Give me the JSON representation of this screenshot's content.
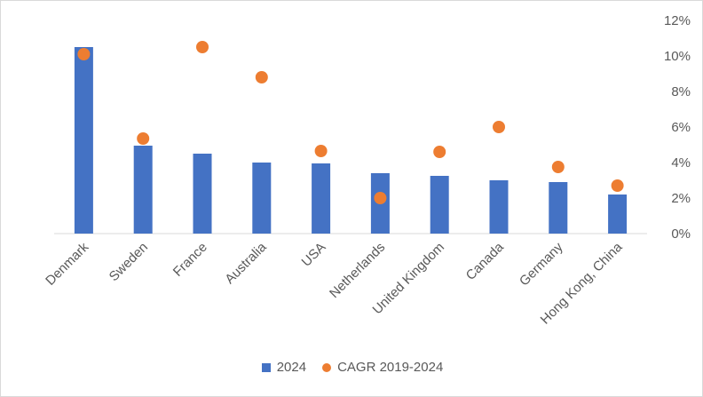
{
  "chart_data": {
    "type": "bar",
    "categories": [
      "Denmark",
      "Sweden",
      "France",
      "Australia",
      "USA",
      "Netherlands",
      "United Kingdom",
      "Canada",
      "Germany",
      "Hong Kong, China"
    ],
    "series": [
      {
        "name": "2024",
        "type": "bar",
        "axis": "left",
        "color": "#4472C4",
        "values": [
          10.5,
          4.95,
          4.5,
          4.0,
          3.95,
          3.4,
          3.25,
          3.0,
          2.9,
          2.2
        ]
      },
      {
        "name": "CAGR 2019-2024",
        "type": "scatter",
        "axis": "right",
        "color": "#ED7D31",
        "values": [
          10.1,
          5.35,
          10.5,
          8.8,
          4.65,
          2.0,
          4.6,
          6.0,
          3.75,
          2.7
        ]
      }
    ],
    "y_right": {
      "ticks": [
        "0%",
        "2%",
        "4%",
        "6%",
        "8%",
        "10%",
        "12%"
      ],
      "min": 0,
      "max": 12
    },
    "grid": false,
    "legend_position": "bottom"
  }
}
